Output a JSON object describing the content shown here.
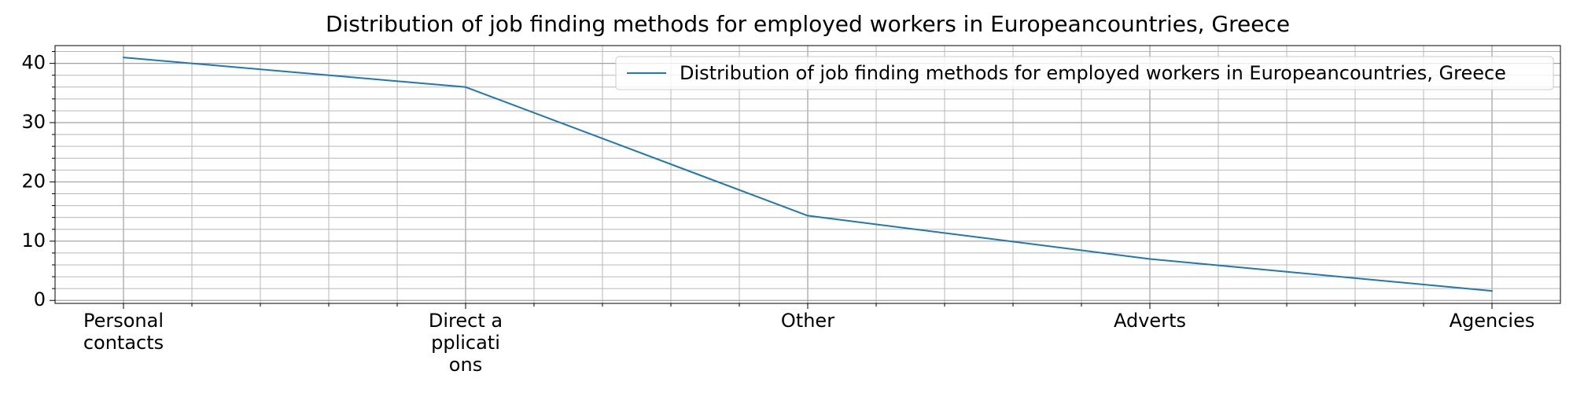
{
  "chart_data": {
    "type": "line",
    "title": "Distribution of job finding methods for employed workers in Europeancountries, Greece",
    "xlabel": "",
    "ylabel": "",
    "categories": [
      [
        "Personal",
        "contacts"
      ],
      [
        "Direct a",
        "pplicati",
        "ons"
      ],
      [
        "Other"
      ],
      [
        "Adverts"
      ],
      [
        "Agencies"
      ]
    ],
    "series": [
      {
        "name": "Distribution of job finding methods for employed workers in Europeancountries, Greece",
        "values": [
          41,
          36,
          14.3,
          7,
          1.6
        ],
        "color": "#1f77b4"
      }
    ],
    "ylim": [
      -0.5,
      43
    ],
    "yticks": [
      0,
      10,
      20,
      30,
      40
    ],
    "grid": true,
    "legend_position": "top-right"
  }
}
